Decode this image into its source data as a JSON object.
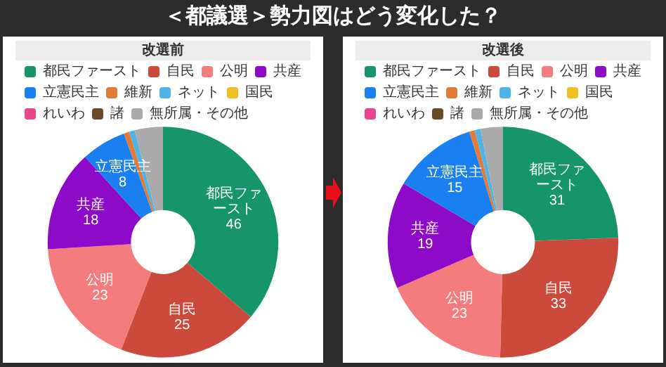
{
  "chart_data": [
    {
      "type": "donut",
      "title": "改選前",
      "annotations": [
        "＜都議選＞勢力図はどう変化した？"
      ],
      "legend": "top",
      "categories": [
        "都民ファースト",
        "自民",
        "公明",
        "共産",
        "立憲民主",
        "維新",
        "ネット",
        "国民",
        "れいわ",
        "諸",
        "無所属・その他"
      ],
      "values": [
        46,
        25,
        23,
        18,
        8,
        1,
        1,
        0,
        0,
        0,
        5
      ],
      "colors": [
        "#16956a",
        "#cc4a3c",
        "#f47c7c",
        "#8c0ac8",
        "#1a7ff0",
        "#e07b3a",
        "#4fb3e8",
        "#f0c020",
        "#e8458b",
        "#6b4a2a",
        "#aaaaaa"
      ],
      "value_labels": [
        "都民ファースト\n46",
        "自民\n25",
        "公明\n23",
        "共産\n18",
        "立憲民主\n8",
        null,
        null,
        null,
        null,
        null,
        null
      ]
    },
    {
      "type": "donut",
      "title": "改選後",
      "legend": "top",
      "categories": [
        "都民ファースト",
        "自民",
        "公明",
        "共産",
        "立憲民主",
        "維新",
        "ネット",
        "国民",
        "れいわ",
        "諸",
        "無所属・その他"
      ],
      "values": [
        31,
        33,
        23,
        19,
        15,
        1,
        1,
        0,
        0,
        0,
        4
      ],
      "colors": [
        "#16956a",
        "#cc4a3c",
        "#f47c7c",
        "#8c0ac8",
        "#1a7ff0",
        "#e07b3a",
        "#4fb3e8",
        "#f0c020",
        "#e8458b",
        "#6b4a2a",
        "#aaaaaa"
      ],
      "value_labels": [
        "都民ファースト\n31",
        "自民\n33",
        "公明\n23",
        "共産\n19",
        "立憲民主\n15",
        null,
        null,
        null,
        null,
        null,
        null
      ]
    }
  ]
}
